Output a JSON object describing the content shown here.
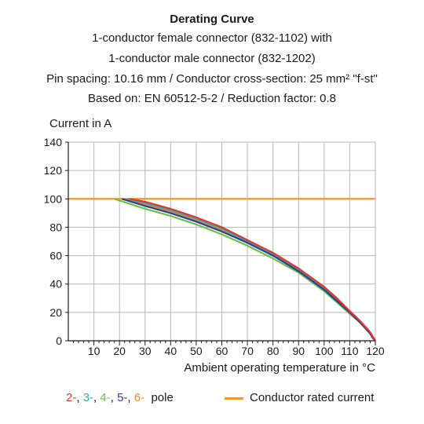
{
  "chart_data": {
    "type": "line",
    "title": "Derating Curve",
    "subtitle_lines": [
      "1-conductor female connector (832-1102) with",
      "1-conductor male connector (832-1202)",
      "Pin spacing: 10.16 mm / Conductor cross-section: 25 mm² \"f-st\"",
      "Based on: EN 60512-5-2 / Reduction factor: 0.8"
    ],
    "ylabel": "Current in A",
    "xlabel": "Ambient operating temperature in °C",
    "xlim": [
      0,
      120
    ],
    "ylim": [
      0,
      140
    ],
    "x_ticks": [
      10,
      20,
      30,
      40,
      50,
      60,
      70,
      80,
      90,
      100,
      110,
      120
    ],
    "y_ticks": [
      0,
      20,
      40,
      60,
      80,
      100,
      120,
      140
    ],
    "grid": true,
    "series": [
      {
        "name": "2-",
        "color": "#e8352b",
        "x": [
          24,
          30,
          40,
          50,
          60,
          70,
          80,
          90,
          100,
          105,
          110,
          114,
          116,
          118,
          119,
          120
        ],
        "y": [
          100,
          98,
          93,
          87,
          80,
          71,
          62,
          51,
          38,
          30,
          21,
          14,
          10,
          6,
          3,
          0
        ]
      },
      {
        "name": "3-",
        "color": "#2ab0b3",
        "x": [
          23,
          30,
          40,
          50,
          60,
          70,
          80,
          90,
          100,
          105,
          110,
          114,
          116,
          118,
          119,
          120
        ],
        "y": [
          100,
          97,
          92,
          86,
          79,
          70,
          61,
          50,
          37,
          29,
          21,
          14,
          10,
          6,
          3,
          0
        ]
      },
      {
        "name": "4-",
        "color": "#6ac13f",
        "x": [
          18,
          30,
          40,
          50,
          60,
          70,
          80,
          90,
          100,
          105,
          110,
          114,
          116,
          118,
          119,
          120
        ],
        "y": [
          100,
          93,
          88,
          82,
          75,
          67,
          58,
          48,
          35,
          27,
          19,
          13,
          9,
          5,
          2,
          0
        ]
      },
      {
        "name": "5-",
        "color": "#2f3e96",
        "x": [
          21,
          30,
          40,
          50,
          60,
          70,
          80,
          90,
          100,
          105,
          110,
          114,
          116,
          118,
          119,
          120
        ],
        "y": [
          100,
          95,
          90,
          84,
          77,
          69,
          60,
          49,
          36,
          28,
          20,
          13,
          9,
          5,
          2,
          0
        ]
      },
      {
        "name": "6-",
        "color": "#e98a2d",
        "x": [
          22,
          30,
          40,
          50,
          60,
          70,
          80,
          90,
          100,
          105,
          110,
          114,
          116,
          118,
          119,
          120
        ],
        "y": [
          100,
          96,
          91,
          85,
          78,
          70,
          61,
          50,
          37,
          29,
          20,
          14,
          10,
          6,
          3,
          0
        ]
      }
    ],
    "rated_current": {
      "name": "Conductor rated current",
      "value": 100,
      "color": "#f0962e"
    }
  },
  "legend": {
    "pole_labels": [
      "2-",
      "3-",
      "4-",
      "5-",
      "6-"
    ],
    "pole_suffix": "pole",
    "rated_label": "Conductor rated current"
  }
}
